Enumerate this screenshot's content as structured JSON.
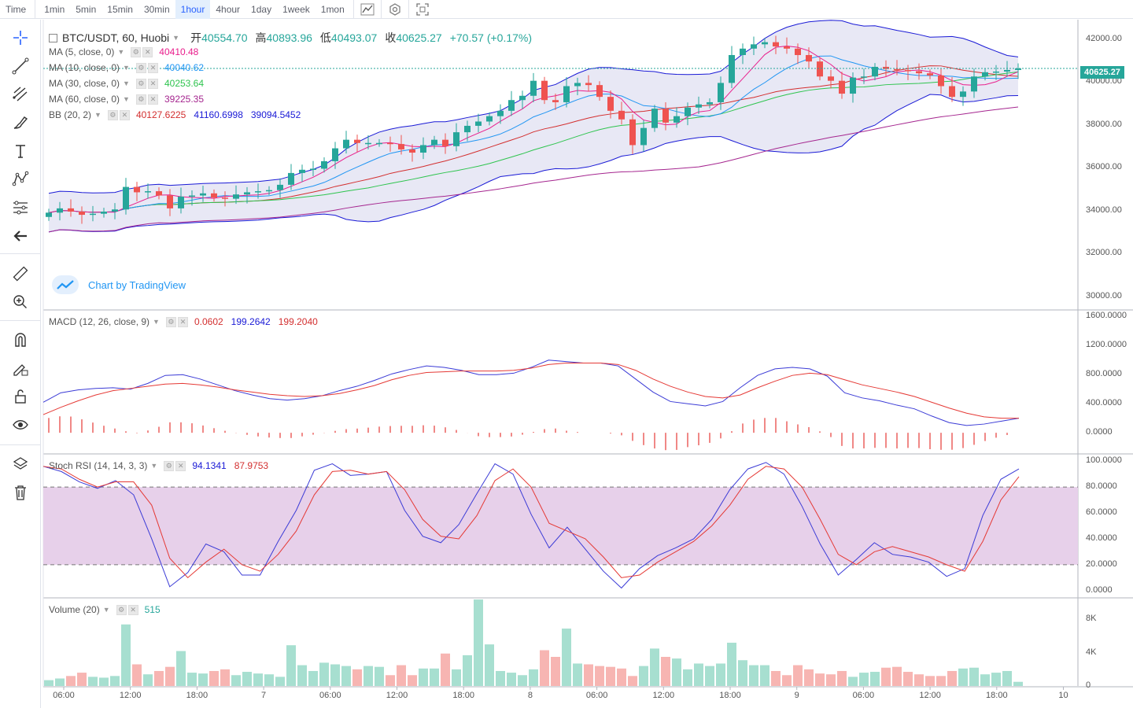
{
  "timeframes": {
    "time_label": "Time",
    "items": [
      "1min",
      "5min",
      "15min",
      "30min",
      "1hour",
      "4hour",
      "1day",
      "1week",
      "1mon"
    ],
    "active": "1hour"
  },
  "toolbar_icons": [
    "crosshair-icon",
    "trendline-icon",
    "fib-icon",
    "brush-icon",
    "text-icon",
    "pattern-icon",
    "forecast-icon",
    "back-arrow-icon",
    "ruler-icon",
    "zoom-in-icon",
    "magnet-icon",
    "lock-draw-icon",
    "unlock-icon",
    "eye-icon",
    "layers-icon",
    "trash-icon"
  ],
  "symbol": {
    "title": "BTC/USDT, 60, Huobi",
    "open_label": "开",
    "open": "40554.70",
    "high_label": "高",
    "high": "40893.96",
    "low_label": "低",
    "low": "40493.07",
    "close_label": "收",
    "close": "40625.27",
    "change": "+70.57 (+0.17%)"
  },
  "indicators": [
    {
      "name": "MA (5, close, 0)",
      "values": [
        "40410.48"
      ],
      "colors": [
        "#e91e8c"
      ]
    },
    {
      "name": "MA (10, close, 0)",
      "values": [
        "40040.62"
      ],
      "colors": [
        "#2196f3"
      ]
    },
    {
      "name": "MA (30, close, 0)",
      "values": [
        "40253.64"
      ],
      "colors": [
        "#2ec44e"
      ]
    },
    {
      "name": "MA (60, close, 0)",
      "values": [
        "39225.35"
      ],
      "colors": [
        "#a5268f"
      ]
    },
    {
      "name": "BB (20, 2)",
      "values": [
        "40127.6225",
        "41160.6998",
        "39094.5452"
      ],
      "colors": [
        "#d32f2f",
        "#1a1ad6",
        "#1a1ad6"
      ]
    }
  ],
  "macd": {
    "name": "MACD (12, 26, close, 9)",
    "values": [
      "0.0602",
      "199.2642",
      "199.2040"
    ],
    "colors": [
      "#d32f2f",
      "#1a1ad6",
      "#d32f2f"
    ]
  },
  "stoch": {
    "name": "Stoch RSI (14, 14, 3, 3)",
    "values": [
      "94.1341",
      "87.9753"
    ],
    "colors": [
      "#1a1ad6",
      "#d32f2f"
    ]
  },
  "volume": {
    "name": "Volume (20)",
    "values": [
      "515"
    ],
    "colors": [
      "#26a69a"
    ]
  },
  "watermark": "Chart by TradingView",
  "last_price": "40625.27",
  "colors": {
    "up": "#26a69a",
    "down": "#ef5350",
    "bb_fill": "#e4e4f3",
    "stoch_band": "#e7d0ea"
  },
  "chart_data": {
    "type": "candlestick",
    "title": "BTC/USDT, 60, Huobi",
    "price_axis": {
      "ticks": [
        "42000.00",
        "40000.00",
        "38000.00",
        "36000.00",
        "34000.00",
        "32000.00",
        "30000.00"
      ],
      "ylim": [
        29400,
        42900
      ]
    },
    "macd_axis": {
      "ticks": [
        "1600.0000",
        "1200.0000",
        "800.0000",
        "400.0000",
        "0.0000"
      ],
      "ylim": [
        -280,
        1680
      ]
    },
    "stoch_axis": {
      "ticks": [
        "100.0000",
        "80.0000",
        "60.0000",
        "40.0000",
        "20.0000",
        "0.0000"
      ],
      "ylim": [
        -5,
        105
      ],
      "bands": [
        20,
        80
      ]
    },
    "volume_axis": {
      "ticks": [
        "8K",
        "4K",
        "0"
      ],
      "ylim": [
        0,
        10500
      ]
    },
    "time_ticks": [
      "06:00",
      "12:00",
      "18:00",
      "7",
      "06:00",
      "12:00",
      "18:00",
      "8",
      "06:00",
      "12:00",
      "18:00",
      "9",
      "06:00",
      "12:00",
      "18:00",
      "10"
    ],
    "close": [
      33900,
      34100,
      33950,
      33800,
      33850,
      33950,
      34050,
      35100,
      34850,
      34900,
      34700,
      34100,
      34650,
      34700,
      34800,
      34600,
      34550,
      34750,
      34850,
      34900,
      34950,
      35200,
      35750,
      35900,
      35950,
      36300,
      36900,
      37300,
      37150,
      37150,
      37150,
      37100,
      36850,
      36700,
      37050,
      37300,
      37000,
      37650,
      37950,
      38150,
      38400,
      38650,
      39150,
      39350,
      40050,
      39150,
      39050,
      39800,
      39950,
      39850,
      39300,
      38650,
      38250,
      37050,
      37850,
      38750,
      38100,
      38400,
      38800,
      38950,
      39050,
      39950,
      41250,
      41550,
      41750,
      41850,
      41650,
      41550,
      41250,
      40950,
      40250,
      40050,
      39450,
      40200,
      40250,
      40700,
      40600,
      40550,
      40500,
      40400,
      40300,
      39800,
      39300,
      39550,
      40250,
      40450,
      40480,
      40554,
      40625
    ],
    "open": [
      33700,
      33900,
      34100,
      33950,
      33800,
      33850,
      33950,
      34050,
      35100,
      34850,
      34900,
      34700,
      34100,
      34650,
      34700,
      34800,
      34600,
      34550,
      34750,
      34850,
      34900,
      34950,
      35200,
      35750,
      35900,
      35950,
      36300,
      36900,
      37300,
      37150,
      37150,
      37150,
      37100,
      36850,
      36700,
      37050,
      37300,
      37000,
      37650,
      37950,
      38150,
      38400,
      38650,
      39150,
      39350,
      40050,
      39150,
      39050,
      39800,
      39950,
      39850,
      39300,
      38650,
      38250,
      37050,
      37850,
      38750,
      38100,
      38400,
      38800,
      38950,
      39050,
      39950,
      41250,
      41550,
      41750,
      41850,
      41650,
      41550,
      41250,
      40950,
      40250,
      40050,
      39450,
      40200,
      40250,
      40700,
      40600,
      40550,
      40500,
      40400,
      40300,
      39800,
      39300,
      39550,
      40250,
      40450,
      40480,
      40554
    ],
    "volume": [
      700,
      900,
      1200,
      1600,
      1100,
      1000,
      1200,
      7400,
      2600,
      1400,
      1800,
      2300,
      4200,
      1600,
      1500,
      1800,
      2000,
      1300,
      1700,
      1500,
      1400,
      1100,
      4900,
      2500,
      1800,
      2800,
      2600,
      2400,
      2000,
      2400,
      2300,
      1300,
      2500,
      1300,
      2100,
      2100,
      3900,
      2000,
      3700,
      10400,
      5000,
      1800,
      1600,
      1300,
      2000,
      4300,
      3500,
      6900,
      2700,
      2600,
      2400,
      2300,
      2100,
      1200,
      2400,
      4500,
      3500,
      3300,
      2000,
      2700,
      2400,
      2700,
      5200,
      3100,
      2500,
      2500,
      1800,
      1300,
      2500,
      2000,
      1500,
      1400,
      1800,
      1100,
      1600,
      1700,
      2200,
      2300,
      1700,
      1400,
      1200,
      1200,
      1800,
      2100,
      2200,
      1400,
      1600,
      1800,
      500
    ],
    "macd_line": [
      420,
      550,
      590,
      610,
      620,
      600,
      680,
      790,
      800,
      740,
      660,
      580,
      520,
      470,
      450,
      470,
      510,
      580,
      640,
      720,
      810,
      870,
      920,
      900,
      860,
      800,
      800,
      820,
      900,
      1000,
      980,
      960,
      960,
      920,
      740,
      560,
      430,
      400,
      370,
      430,
      620,
      790,
      880,
      900,
      880,
      780,
      550,
      480,
      440,
      380,
      330,
      230,
      140,
      100,
      120,
      160,
      200
    ],
    "signal_line": [
      250,
      350,
      440,
      520,
      580,
      610,
      640,
      670,
      680,
      660,
      630,
      590,
      560,
      530,
      510,
      500,
      510,
      540,
      590,
      650,
      730,
      790,
      830,
      840,
      850,
      850,
      850,
      860,
      890,
      940,
      960,
      960,
      960,
      940,
      860,
      740,
      640,
      560,
      500,
      480,
      520,
      620,
      710,
      790,
      820,
      800,
      730,
      660,
      610,
      560,
      500,
      420,
      340,
      270,
      220,
      200,
      200
    ]
  }
}
